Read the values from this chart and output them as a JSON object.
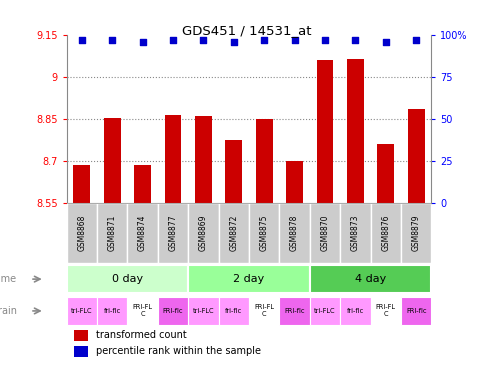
{
  "title": "GDS451 / 14531_at",
  "samples": [
    "GSM8868",
    "GSM8871",
    "GSM8874",
    "GSM8877",
    "GSM8869",
    "GSM8872",
    "GSM8875",
    "GSM8878",
    "GSM8870",
    "GSM8873",
    "GSM8876",
    "GSM8879"
  ],
  "bar_values": [
    8.685,
    8.855,
    8.685,
    8.865,
    8.86,
    8.775,
    8.85,
    8.7,
    9.06,
    9.065,
    8.76,
    8.885
  ],
  "percentile_values": [
    97,
    97,
    96,
    97,
    97,
    96,
    97,
    97,
    97,
    97,
    96,
    97
  ],
  "bar_color": "#cc0000",
  "percentile_color": "#0000cc",
  "ylim_left": [
    8.55,
    9.15
  ],
  "ylim_right": [
    0,
    100
  ],
  "yticks_left": [
    8.55,
    8.7,
    8.85,
    9.0,
    9.15
  ],
  "ytick_labels_left": [
    "8.55",
    "8.7",
    "8.85",
    "9",
    "9.15"
  ],
  "yticks_right": [
    0,
    25,
    50,
    75,
    100
  ],
  "ytick_labels_right": [
    "0",
    "25",
    "50",
    "75",
    "100%"
  ],
  "grid_yticks": [
    8.7,
    8.85,
    9.0
  ],
  "time_groups": [
    {
      "label": "0 day",
      "start": 0,
      "end": 4,
      "color": "#ccffcc"
    },
    {
      "label": "2 day",
      "start": 4,
      "end": 8,
      "color": "#99ff99"
    },
    {
      "label": "4 day",
      "start": 8,
      "end": 12,
      "color": "#55cc55"
    }
  ],
  "strain_data": [
    {
      "label": "tri-FLC",
      "color": "#ff99ff"
    },
    {
      "label": "fri-flc",
      "color": "#ff99ff"
    },
    {
      "label": "FRI-FL\nC",
      "color": "#ffffff"
    },
    {
      "label": "FRI-flc",
      "color": "#ee66ee"
    },
    {
      "label": "tri-FLC",
      "color": "#ff99ff"
    },
    {
      "label": "fri-flc",
      "color": "#ff99ff"
    },
    {
      "label": "FRI-FL\nC",
      "color": "#ffffff"
    },
    {
      "label": "FRI-flc",
      "color": "#ee66ee"
    },
    {
      "label": "tri-FLC",
      "color": "#ff99ff"
    },
    {
      "label": "fri-flc",
      "color": "#ff99ff"
    },
    {
      "label": "FRI-FL\nC",
      "color": "#ffffff"
    },
    {
      "label": "FRI-flc",
      "color": "#ee66ee"
    }
  ],
  "legend_red": "transformed count",
  "legend_blue": "percentile rank within the sample",
  "plot_bg": "#ffffff",
  "label_row_bg": "#cccccc",
  "border_color": "#888888"
}
